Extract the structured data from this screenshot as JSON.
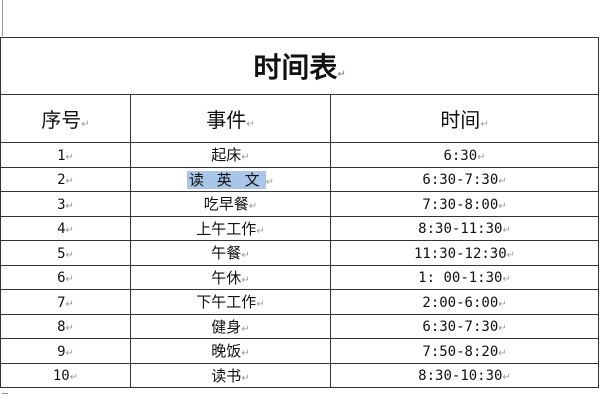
{
  "title": "时间表",
  "paragraph_mark": "↵",
  "headers": [
    "序号",
    "事件",
    "时间"
  ],
  "rows": [
    {
      "no": "1",
      "event": "起床",
      "time": "6:30"
    },
    {
      "no": "2",
      "event": "读 英 文",
      "time": "6:30-7:30",
      "selected": true
    },
    {
      "no": "3",
      "event": "吃早餐",
      "time": "7:30-8:00"
    },
    {
      "no": "4",
      "event": "上午工作",
      "time": "8:30-11:30"
    },
    {
      "no": "5",
      "event": "午餐",
      "time": "11:30-12:30"
    },
    {
      "no": "6",
      "event": "午休",
      "time": "1: 00-1:30"
    },
    {
      "no": "7",
      "event": "下午工作",
      "time": "2:00-6:00"
    },
    {
      "no": "8",
      "event": "健身",
      "time": "6:30-7:30"
    },
    {
      "no": "9",
      "event": "晚饭",
      "time": "7:50-8:20"
    },
    {
      "no": "10",
      "event": "读书",
      "time": "8:30-10:30"
    }
  ],
  "colors": {
    "selection": "#a9c6e8",
    "border": "#333333"
  }
}
